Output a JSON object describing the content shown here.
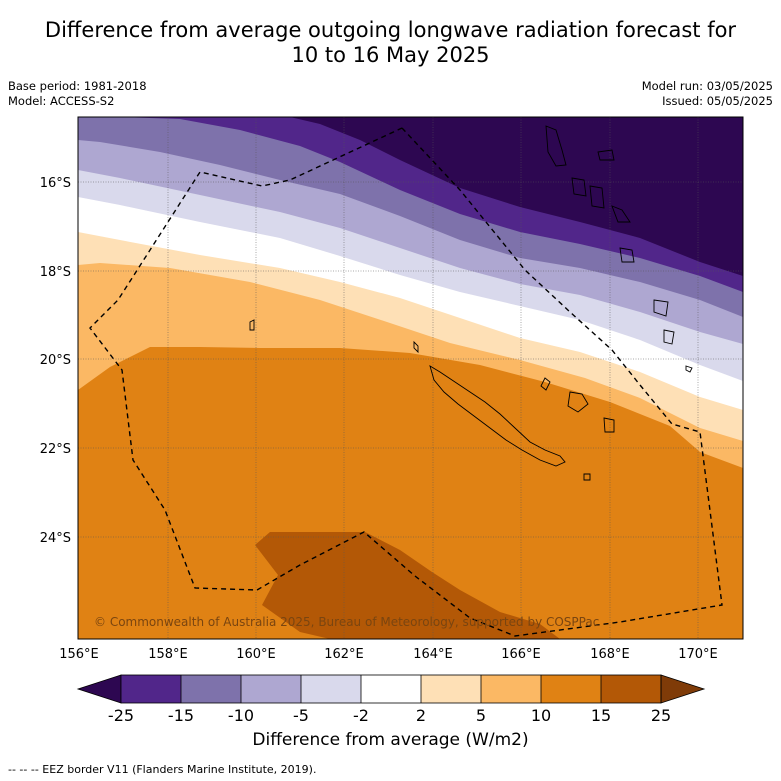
{
  "header": {
    "title_line1": "Difference from average outgoing longwave radiation forecast for",
    "title_line2": "10 to 16 May 2025",
    "base_period": "Base period: 1981-2018",
    "model": "Model: ACCESS-S2",
    "model_run": "Model run: 03/05/2025",
    "issued": "Issued: 05/05/2025"
  },
  "map": {
    "lat_labels": [
      "16°S",
      "18°S",
      "20°S",
      "22°S",
      "24°S"
    ],
    "lon_labels": [
      "156°E",
      "158°E",
      "160°E",
      "162°E",
      "164°E",
      "166°E",
      "168°E",
      "170°E"
    ],
    "copyright": "© Commonwealth of Australia 2025, Bureau of Meteorology, supported by COSPPac",
    "colors": {
      "lt_neg25": "#2d0751",
      "neg25_neg15": "#51268a",
      "neg15_neg10": "#7e72ab",
      "neg10_neg5": "#aea7d1",
      "neg5_neg2": "#d9d9ec",
      "neg2_2": "#ffffff",
      "pos2_5": "#fee0b6",
      "pos5_10": "#fbb864",
      "pos10_15": "#e08214",
      "pos15_25": "#b35806",
      "gt_25": "#7f3b08"
    }
  },
  "colorbar": {
    "ticks": [
      "-25",
      "-15",
      "-10",
      "-5",
      "-2",
      "2",
      "5",
      "10",
      "15",
      "25"
    ],
    "title": "Difference from average (W/m2)"
  },
  "footnote": "--  --  -- EEZ border V11 (Flanders Marine Institute, 2019)."
}
